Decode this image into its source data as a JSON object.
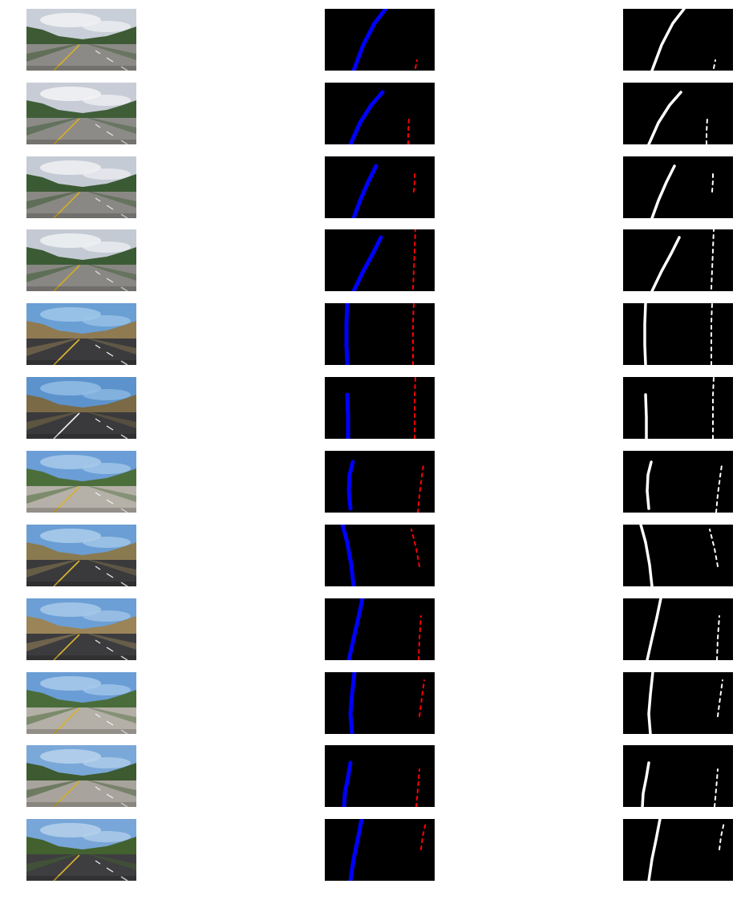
{
  "colors": {
    "background": "#ffffff",
    "mask_background": "#000000",
    "left_lane": "#0000ff",
    "right_lane": "#ff0000",
    "binary_pixels": "#ffffff"
  },
  "rows": [
    {
      "scene": "overcast-highway-overpass",
      "sky": "#c9cfd8",
      "cloud": "#eef0f3",
      "hills": "#3e5a35",
      "road": "#8c8a86",
      "left_line": "#d8b028",
      "right_line": "#e8e8e8",
      "left_lane_pts": [
        [
          36,
          77
        ],
        [
          48,
          45
        ],
        [
          62,
          18
        ],
        [
          76,
          0
        ]
      ],
      "right_lane_pts": [
        [
          113,
          74
        ],
        [
          115,
          64
        ]
      ]
    },
    {
      "scene": "overcast-overpass-sign",
      "sky": "#c7ccd6",
      "cloud": "#f1f2f4",
      "hills": "#3f5e38",
      "road": "#8d8b87",
      "left_line": "#d6ae2a",
      "right_line": "#e6e6e6",
      "left_lane_pts": [
        [
          32,
          77
        ],
        [
          44,
          50
        ],
        [
          58,
          28
        ],
        [
          72,
          12
        ]
      ],
      "right_lane_pts": [
        [
          104,
          77
        ],
        [
          104,
          62
        ],
        [
          105,
          44
        ]
      ]
    },
    {
      "scene": "overcast-overpass-near",
      "sky": "#c5cbd5",
      "cloud": "#eceef2",
      "hills": "#3a5a33",
      "road": "#8a8884",
      "left_line": "#d5ad28",
      "right_line": "#e5e5e5",
      "left_lane_pts": [
        [
          36,
          77
        ],
        [
          44,
          55
        ],
        [
          54,
          32
        ],
        [
          64,
          12
        ]
      ],
      "right_lane_pts": [
        [
          111,
          44
        ],
        [
          112,
          30
        ],
        [
          112,
          18
        ]
      ]
    },
    {
      "scene": "overcast-overpass-far",
      "sky": "#c4cad4",
      "cloud": "#edeff2",
      "hills": "#3b5b34",
      "road": "#898783",
      "left_line": "#d4ac27",
      "right_line": "#e4e4e4",
      "left_lane_pts": [
        [
          36,
          77
        ],
        [
          48,
          52
        ],
        [
          60,
          30
        ],
        [
          70,
          10
        ]
      ],
      "right_lane_pts": [
        [
          110,
          74
        ],
        [
          111,
          50
        ],
        [
          112,
          25
        ],
        [
          113,
          0
        ]
      ]
    },
    {
      "scene": "sunny-dry-hills-straight",
      "sky": "#6a9fd4",
      "cloud": "#9cc4e8",
      "hills": "#8f7a52",
      "road": "#3b3b3d",
      "left_line": "#e0b830",
      "right_line": "#f2f2f2",
      "left_lane_pts": [
        [
          28,
          77
        ],
        [
          27,
          52
        ],
        [
          27,
          26
        ],
        [
          28,
          0
        ]
      ],
      "right_lane_pts": [
        [
          110,
          77
        ],
        [
          110,
          50
        ],
        [
          110,
          24
        ],
        [
          111,
          0
        ]
      ]
    },
    {
      "scene": "sunny-trees-straight",
      "sky": "#5d93cc",
      "cloud": "#8fbbe4",
      "hills": "#7a6a45",
      "road": "#3a3a3c",
      "left_line": "#f0f0f0",
      "right_line": "#f0f0f0",
      "left_lane_pts": [
        [
          29,
          77
        ],
        [
          29,
          50
        ],
        [
          28,
          22
        ]
      ],
      "right_lane_pts": [
        [
          112,
          77
        ],
        [
          112,
          50
        ],
        [
          112,
          24
        ],
        [
          113,
          0
        ]
      ]
    },
    {
      "scene": "sunny-trees-curve-cars",
      "sky": "#6b9ed6",
      "cloud": "#a5c8ea",
      "hills": "#4c6e3b",
      "road": "#b5b0a8",
      "left_line": "#d9b22c",
      "right_line": "#f5f5f5",
      "left_lane_pts": [
        [
          32,
          72
        ],
        [
          30,
          50
        ],
        [
          31,
          30
        ],
        [
          35,
          14
        ]
      ],
      "right_lane_pts": [
        [
          116,
          77
        ],
        [
          118,
          55
        ],
        [
          121,
          32
        ],
        [
          123,
          18
        ]
      ]
    },
    {
      "scene": "sunny-warning-sign",
      "sky": "#6a9ed4",
      "cloud": "#a8caea",
      "hills": "#8a7a50",
      "road": "#3a3a3c",
      "left_line": "#e0b830",
      "right_line": "#f0f0f0",
      "left_lane_pts": [
        [
          36,
          77
        ],
        [
          33,
          50
        ],
        [
          28,
          22
        ],
        [
          22,
          0
        ]
      ],
      "right_lane_pts": [
        [
          118,
          52
        ],
        [
          114,
          30
        ],
        [
          108,
          6
        ]
      ]
    },
    {
      "scene": "sunny-dry-hill-right",
      "sky": "#6c9fd5",
      "cloud": "#a4c6e8",
      "hills": "#9a8458",
      "road": "#3c3c3e",
      "left_line": "#dcb42e",
      "right_line": "#f1f1f1",
      "left_lane_pts": [
        [
          30,
          77
        ],
        [
          36,
          50
        ],
        [
          42,
          24
        ],
        [
          47,
          0
        ]
      ],
      "right_lane_pts": [
        [
          117,
          77
        ],
        [
          118,
          50
        ],
        [
          120,
          22
        ]
      ]
    },
    {
      "scene": "sunny-trees-cars-2",
      "sky": "#6a9dd5",
      "cloud": "#a6c8ea",
      "hills": "#4a6c3a",
      "road": "#b4afa7",
      "left_line": "#d8b12c",
      "right_line": "#f4f4f4",
      "left_lane_pts": [
        [
          34,
          77
        ],
        [
          32,
          52
        ],
        [
          34,
          28
        ],
        [
          37,
          0
        ]
      ],
      "right_lane_pts": [
        [
          118,
          55
        ],
        [
          121,
          32
        ],
        [
          124,
          10
        ]
      ]
    },
    {
      "scene": "tree-shadows-cars",
      "sky": "#7aa8d8",
      "cloud": "#b5d0ec",
      "hills": "#3d5a30",
      "road": "#a8a39c",
      "left_line": "#d2ac2a",
      "right_line": "#f2f2f2",
      "left_lane_pts": [
        [
          24,
          77
        ],
        [
          25,
          60
        ],
        [
          29,
          40
        ],
        [
          32,
          22
        ]
      ],
      "right_lane_pts": [
        [
          114,
          77
        ],
        [
          116,
          55
        ],
        [
          118,
          30
        ]
      ]
    },
    {
      "scene": "large-tree-cars",
      "sky": "#78a6d8",
      "cloud": "#b3cfeb",
      "hills": "#42612f",
      "road": "#3e3e40",
      "left_line": "#dcb42e",
      "right_line": "#f3f3f3",
      "left_lane_pts": [
        [
          32,
          77
        ],
        [
          36,
          50
        ],
        [
          41,
          26
        ],
        [
          46,
          0
        ]
      ],
      "right_lane_pts": [
        [
          120,
          38
        ],
        [
          122,
          22
        ],
        [
          126,
          4
        ]
      ]
    }
  ]
}
